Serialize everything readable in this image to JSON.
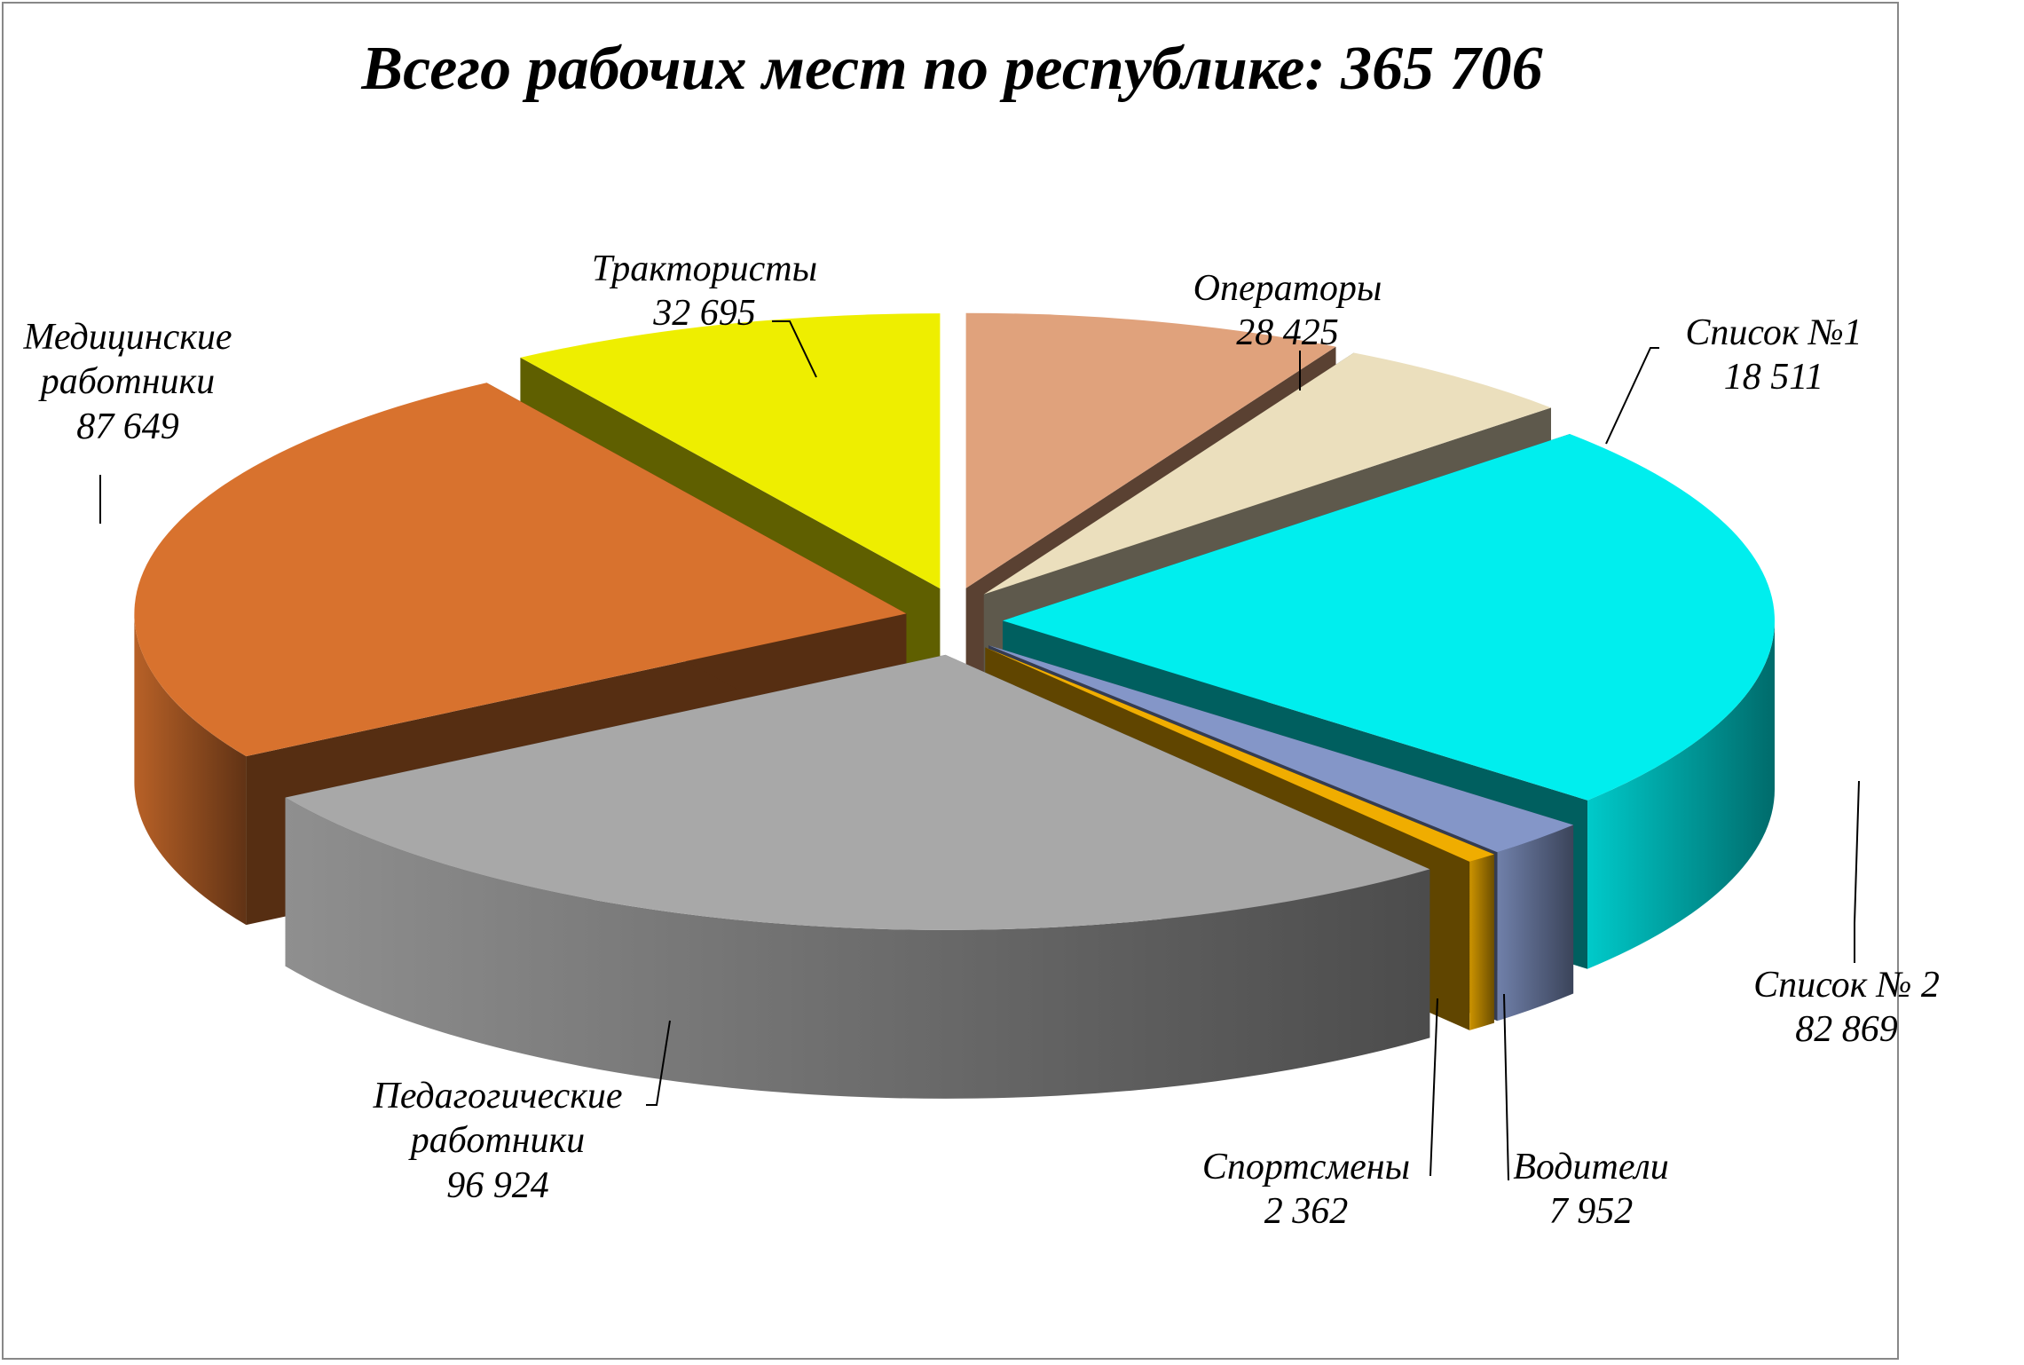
{
  "chart_data": {
    "type": "pie",
    "title": "Всего рабочих мест по республике: 365 706",
    "categories": [
      "Операторы",
      "Список №1",
      "Список № 2",
      "Водители",
      "Спортсмены",
      "Педагогические работники",
      "Медицинские работники",
      "Трактористы"
    ],
    "values": [
      28425,
      18511,
      82869,
      7952,
      2362,
      96924,
      87649,
      32695
    ],
    "value_labels": [
      "28 425",
      "18 511",
      "82 869",
      "7 952",
      "2 362",
      "96 924",
      "87 649",
      "32 695"
    ],
    "colors": [
      "#e0a27c",
      "#ebdfbd",
      "#00eeee",
      "#8496c8",
      "#f0ad00",
      "#a8a8a8",
      "#d8722e",
      "#eeee00"
    ]
  }
}
